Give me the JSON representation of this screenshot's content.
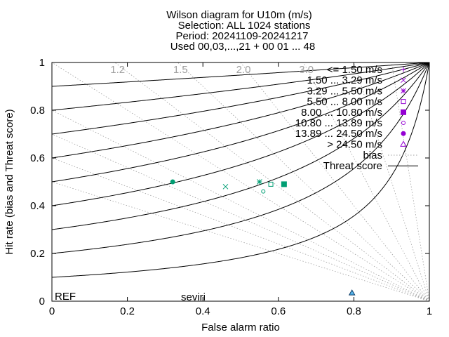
{
  "chart_data": {
    "type": "scatter",
    "title_lines": [
      "Wilson diagram  for U10m (m/s)",
      "Selection: ALL    1024 stations",
      "Period: 20241109-20241217",
      "Used 00,03,...,21 + 00 01 ... 48"
    ],
    "xlabel": "False alarm ratio",
    "ylabel": "Hit rate (bias and Threat score)",
    "xlim": [
      0,
      1
    ],
    "ylim": [
      0,
      1
    ],
    "xticks": [
      "0",
      "0.2",
      "0.4",
      "0.6",
      "0.8",
      "1"
    ],
    "yticks": [
      "0",
      "0.2",
      "0.4",
      "0.6",
      "0.8",
      "1"
    ],
    "bias_labels": [
      "1.2",
      "1.5",
      "2.0",
      "3.0"
    ],
    "bias_values": [
      0.5,
      0.6,
      0.7,
      0.8,
      1.0,
      1.2,
      1.5,
      2.0,
      3.0,
      5.0,
      10.0
    ],
    "threat_values": [
      0.1,
      0.2,
      0.3,
      0.4,
      0.5,
      0.6,
      0.7,
      0.8,
      0.9
    ],
    "legend_placement": "top-right",
    "legend": [
      {
        "label": "<= 1.50 m/s",
        "marker": "plus"
      },
      {
        "label": "1.50 ... 3.29 m/s",
        "marker": "cross"
      },
      {
        "label": "3.29 ... 5.50 m/s",
        "marker": "star"
      },
      {
        "label": "5.50 ... 8.00 m/s",
        "marker": "square-open"
      },
      {
        "label": "8.00 ... 10.80 m/s",
        "marker": "square-filled"
      },
      {
        "label": "10.80 ... 13.89 m/s",
        "marker": "circle-open"
      },
      {
        "label": "13.89 ... 24.50 m/s",
        "marker": "circle-filled"
      },
      {
        "label": "> 24.50 m/s",
        "marker": "triangle-open"
      }
    ],
    "line_legend": [
      {
        "label": "bias",
        "style": "dotted"
      },
      {
        "label": "Threat score",
        "style": "solid"
      }
    ],
    "series": [
      {
        "name": "seviri",
        "points": [
          {
            "x": 0.32,
            "y": 0.5,
            "marker": "plus"
          },
          {
            "x": 0.46,
            "y": 0.48,
            "marker": "cross"
          },
          {
            "x": 0.55,
            "y": 0.5,
            "marker": "star"
          },
          {
            "x": 0.58,
            "y": 0.49,
            "marker": "square-open"
          },
          {
            "x": 0.615,
            "y": 0.49,
            "marker": "square-filled"
          },
          {
            "x": 0.56,
            "y": 0.46,
            "marker": "circle-open"
          },
          {
            "x": 0.32,
            "y": 0.5,
            "marker": "circle-filled"
          },
          {
            "x": 0.795,
            "y": 0.035,
            "marker": "triangle-open"
          }
        ]
      }
    ],
    "ref_label": "REF",
    "exp_label": "seviri",
    "colors": {
      "legend_marker": "#9400d3",
      "ref_label": "#9400d3",
      "exp_label": "#009e73",
      "exp_markers": "#009e73",
      "triangle_fill": "#56b4e9",
      "triangle_stroke": "#0d3b66",
      "bias_text": "#a0a0a0",
      "bias_line": "#a0a0a0",
      "threat_line": "#000000"
    }
  }
}
